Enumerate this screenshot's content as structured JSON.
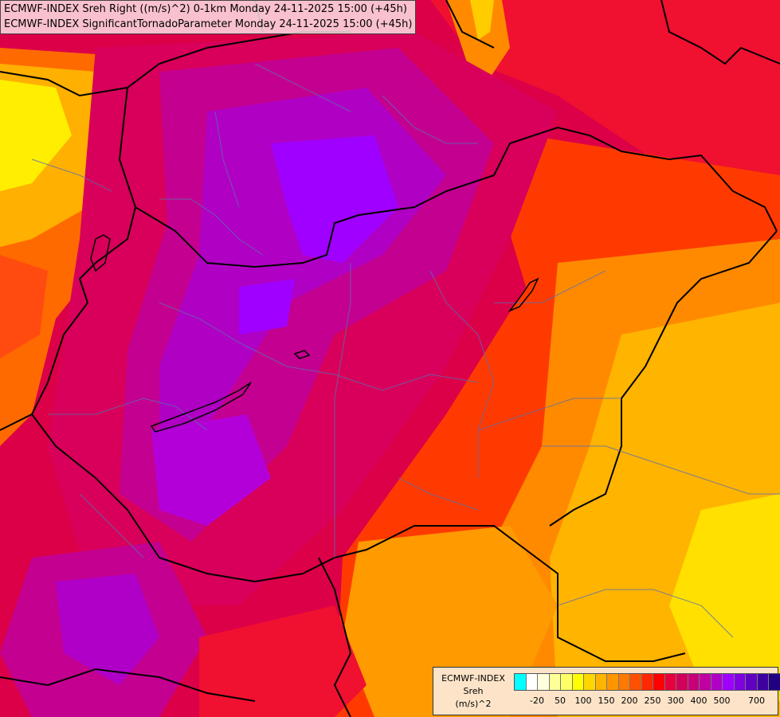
{
  "header": {
    "line1": "ECMWF-INDEX Sreh Right ((m/s)^2) 0-1km Monday 24-11-2025 15:00 (+45h)",
    "line2": "ECMWF-INDEX SignificantTornadoParameter Monday 24-11-2025 15:00 (+45h)"
  },
  "legend": {
    "line1": "ECMWF-INDEX",
    "line2": "Sreh",
    "line3": "(m/s)^2",
    "colors": [
      "#00ffff",
      "#ffffff",
      "#ffffdd",
      "#ffff99",
      "#ffff66",
      "#ffff00",
      "#ffd700",
      "#ffb400",
      "#ff9600",
      "#ff7800",
      "#ff5000",
      "#ff2800",
      "#ff0000",
      "#e6003c",
      "#d2005a",
      "#c80078",
      "#c000a0",
      "#b000c8",
      "#a000ff",
      "#8000e0",
      "#6000c0",
      "#4000a0",
      "#200080"
    ],
    "ticks": [
      {
        "label": "-20",
        "index": 1
      },
      {
        "label": "50",
        "index": 3
      },
      {
        "label": "100",
        "index": 5
      },
      {
        "label": "150",
        "index": 7
      },
      {
        "label": "200",
        "index": 9
      },
      {
        "label": "250",
        "index": 11
      },
      {
        "label": "300",
        "index": 13
      },
      {
        "label": "400",
        "index": 15
      },
      {
        "label": "500",
        "index": 17
      },
      {
        "label": "700",
        "index": 20
      }
    ]
  },
  "field_palette": {
    "yellow": "#ffe400",
    "orange": "#ff9a00",
    "red_orange": "#ff4a00",
    "red": "#f01030",
    "crimson": "#d8005a",
    "magenta": "#c40090",
    "purple": "#b400c4",
    "violet": "#a000ff"
  }
}
